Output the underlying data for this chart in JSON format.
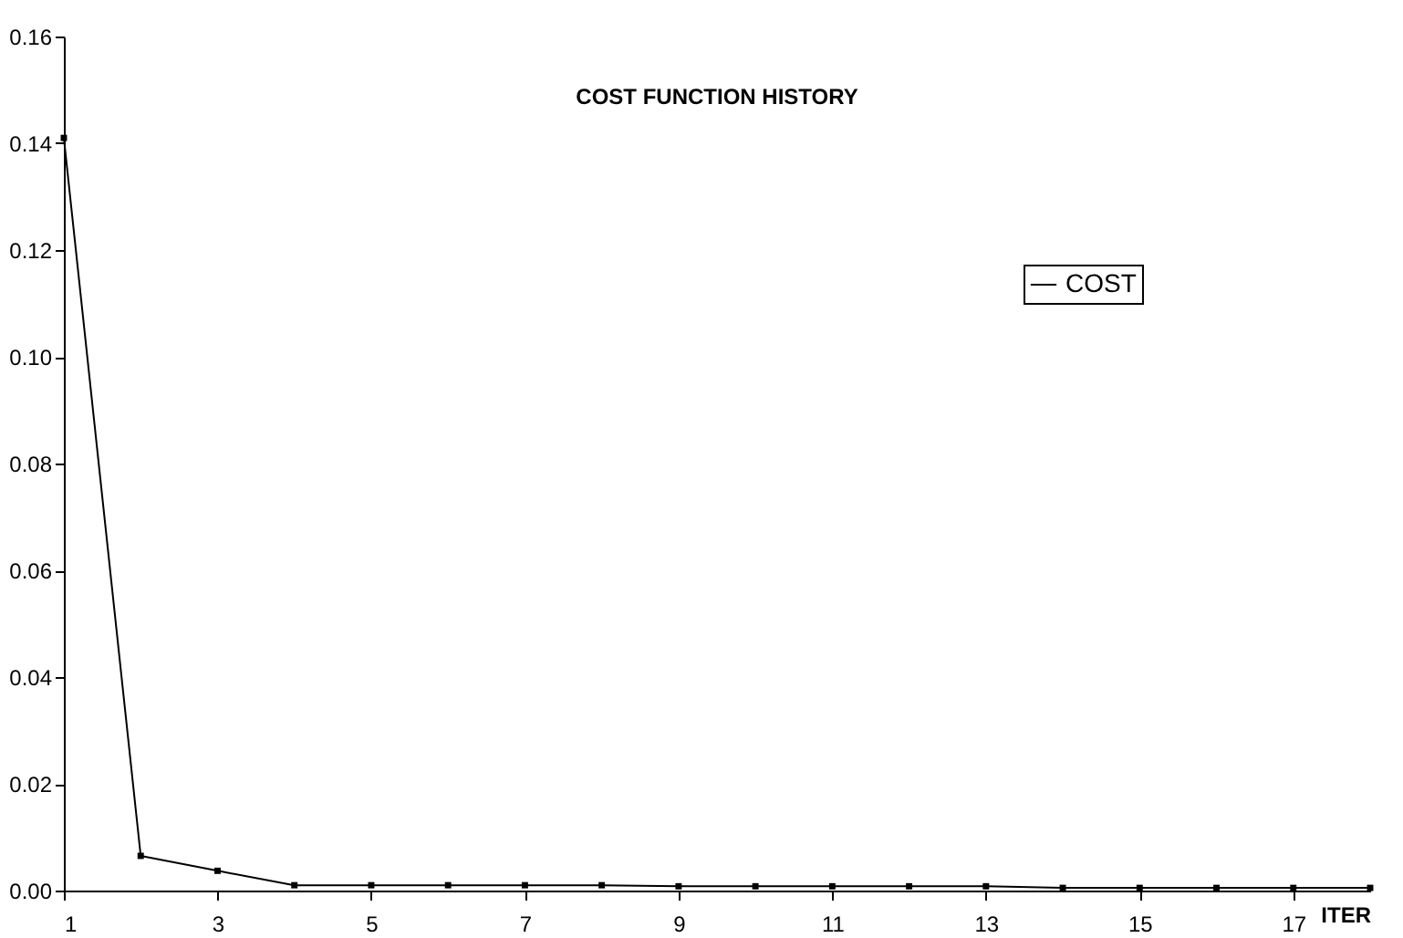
{
  "chart_data": {
    "type": "line",
    "title": "COST FUNCTION HISTORY",
    "xlabel": "ITER",
    "x": [
      1,
      2,
      3,
      4,
      5,
      6,
      7,
      8,
      9,
      10,
      11,
      12,
      13,
      14,
      15,
      16,
      17,
      18
    ],
    "series": [
      {
        "name": "COST",
        "color": "#000000",
        "values": [
          0.141,
          0.0065,
          0.0037,
          0.001,
          0.001,
          0.001,
          0.001,
          0.001,
          0.0008,
          0.0008,
          0.0008,
          0.0008,
          0.0008,
          0.0005,
          0.0005,
          0.0005,
          0.0005,
          0.0005
        ]
      }
    ],
    "xlim": [
      1,
      18
    ],
    "xticks": [
      1,
      3,
      5,
      7,
      9,
      11,
      13,
      15,
      17
    ],
    "ylim": [
      0,
      0.16
    ],
    "yticks": [
      {
        "value": 0,
        "label": "0.00"
      },
      {
        "value": 0.02,
        "label": "0.02"
      },
      {
        "value": 0.04,
        "label": "0.04"
      },
      {
        "value": 0.06,
        "label": "0.06"
      },
      {
        "value": 0.08,
        "label": "0.08"
      },
      {
        "value": 0.1,
        "label": "0.10"
      },
      {
        "value": 0.12,
        "label": "0.12"
      },
      {
        "value": 0.14,
        "label": "0.14"
      },
      {
        "value": 0.16,
        "label": "0.16"
      }
    ],
    "grid": false,
    "legend": "top right",
    "marker": "square",
    "line_style": "solid"
  }
}
